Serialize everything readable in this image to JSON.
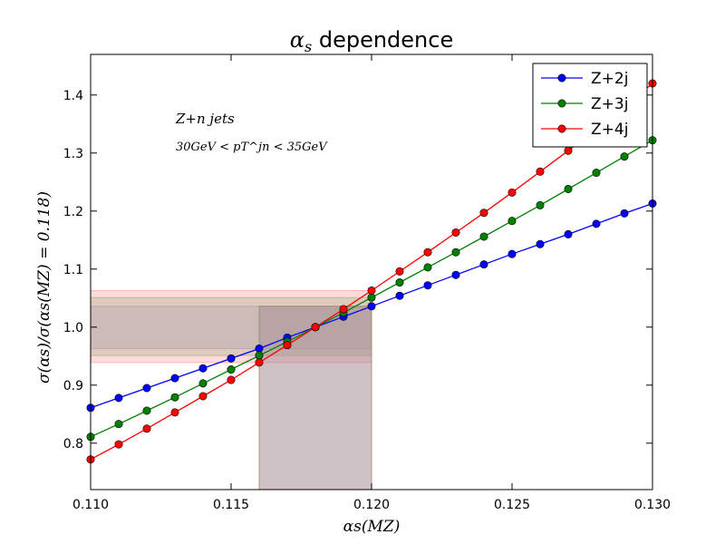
{
  "chart_data": {
    "type": "line",
    "title_main": "α",
    "title_sub": "s",
    "title_rest": " dependence",
    "xlabel": "αs(MZ)",
    "ylabel": "σ(αs)/σ(αs(MZ) = 0.118)",
    "xlim": [
      0.11,
      0.13
    ],
    "ylim": [
      0.72,
      1.47
    ],
    "xticks": [
      0.11,
      0.115,
      0.12,
      0.125,
      0.13
    ],
    "xtick_labels": [
      "0.110",
      "0.115",
      "0.120",
      "0.125",
      "0.130"
    ],
    "yticks": [
      0.8,
      0.9,
      1.0,
      1.1,
      1.2,
      1.3,
      1.4
    ],
    "ytick_labels": [
      "0.8",
      "0.9",
      "1.0",
      "1.1",
      "1.2",
      "1.3",
      "1.4"
    ],
    "annotation_1": "Z+n jets",
    "annotation_2": "30GeV < pT^jn < 35GeV",
    "x": [
      0.11,
      0.111,
      0.112,
      0.113,
      0.114,
      0.115,
      0.116,
      0.117,
      0.118,
      0.119,
      0.12,
      0.121,
      0.122,
      0.123,
      0.124,
      0.125,
      0.126,
      0.127,
      0.128,
      0.129,
      0.13
    ],
    "series": [
      {
        "name": "Z+2j",
        "color": "#0000ff",
        "values": [
          0.861,
          0.878,
          0.895,
          0.912,
          0.929,
          0.946,
          0.963,
          0.982,
          1.0,
          1.018,
          1.036,
          1.054,
          1.072,
          1.09,
          1.108,
          1.126,
          1.143,
          1.16,
          1.178,
          1.196,
          1.213
        ]
      },
      {
        "name": "Z+3j",
        "color": "#008000",
        "values": [
          0.811,
          0.833,
          0.856,
          0.879,
          0.903,
          0.927,
          0.951,
          0.975,
          1.0,
          1.025,
          1.051,
          1.077,
          1.103,
          1.129,
          1.156,
          1.183,
          1.21,
          1.238,
          1.266,
          1.294,
          1.322
        ]
      },
      {
        "name": "Z+4j",
        "color": "#ff0000",
        "values": [
          0.772,
          0.798,
          0.825,
          0.853,
          0.881,
          0.909,
          0.939,
          0.969,
          1.0,
          1.031,
          1.063,
          1.096,
          1.129,
          1.163,
          1.197,
          1.232,
          1.268,
          1.304,
          1.341,
          1.38,
          1.42
        ]
      }
    ],
    "bands": {
      "alpha_range": [
        0.116,
        0.12
      ],
      "horizontal": [
        {
          "series": "Z+4j",
          "range": [
            0.939,
            1.063
          ],
          "color": "#ffb0b0"
        },
        {
          "series": "Z+3j",
          "range": [
            0.951,
            1.051
          ],
          "color": "#b5b89a"
        },
        {
          "series": "Z+2j",
          "range": [
            0.963,
            1.036
          ],
          "color": "#b8a8b0"
        }
      ],
      "vertical_color": "#a89098"
    },
    "legend_position": "top-right"
  }
}
